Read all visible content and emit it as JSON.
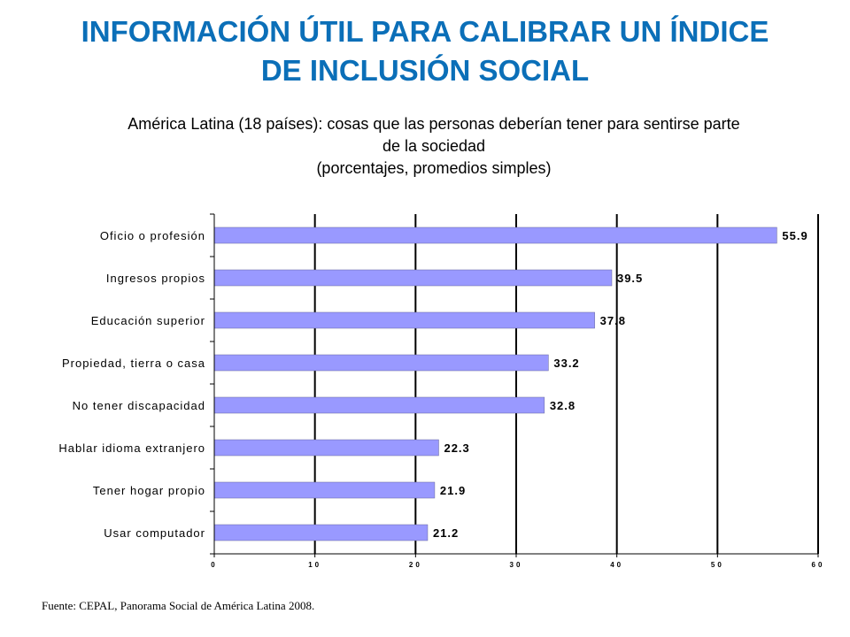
{
  "title": {
    "line1": "INFORMACIÓN ÚTIL PARA CALIBRAR UN ÍNDICE",
    "line2": "DE INCLUSIÓN SOCIAL"
  },
  "chart_data": {
    "type": "bar",
    "orientation": "horizontal",
    "title_lines": [
      "América Latina (18 países): cosas que las personas deberían tener para sentirse parte",
      "de la sociedad",
      "(porcentajes, promedios simples)"
    ],
    "categories": [
      "Oficio o profesión",
      "Ingresos propios",
      "Educación superior",
      "Propiedad, tierra o casa",
      "No tener discapacidad",
      "Hablar idioma extranjero",
      "Tener hogar propio",
      "Usar computador"
    ],
    "values": [
      55.9,
      39.5,
      37.8,
      33.2,
      32.8,
      22.3,
      21.9,
      21.2
    ],
    "data_labels": [
      "55.9",
      "39.5",
      "37.8",
      "33.2",
      "32.8",
      "22.3",
      "21.9",
      "21.2"
    ],
    "xlim": [
      0,
      60
    ],
    "xticks": [
      0,
      10,
      20,
      30,
      40,
      50,
      60
    ],
    "xtick_labels": [
      "0",
      "10",
      "20",
      "30",
      "40",
      "50",
      "60"
    ],
    "grid": "vertical",
    "legend": "none",
    "bar_color": "#9999FF",
    "bar_border_color": "#666699"
  },
  "source": "Fuente: CEPAL, Panorama Social de América Latina 2008.",
  "colors": {
    "title": "#0B6FB8",
    "text": "#000000",
    "grid": "#000000"
  }
}
